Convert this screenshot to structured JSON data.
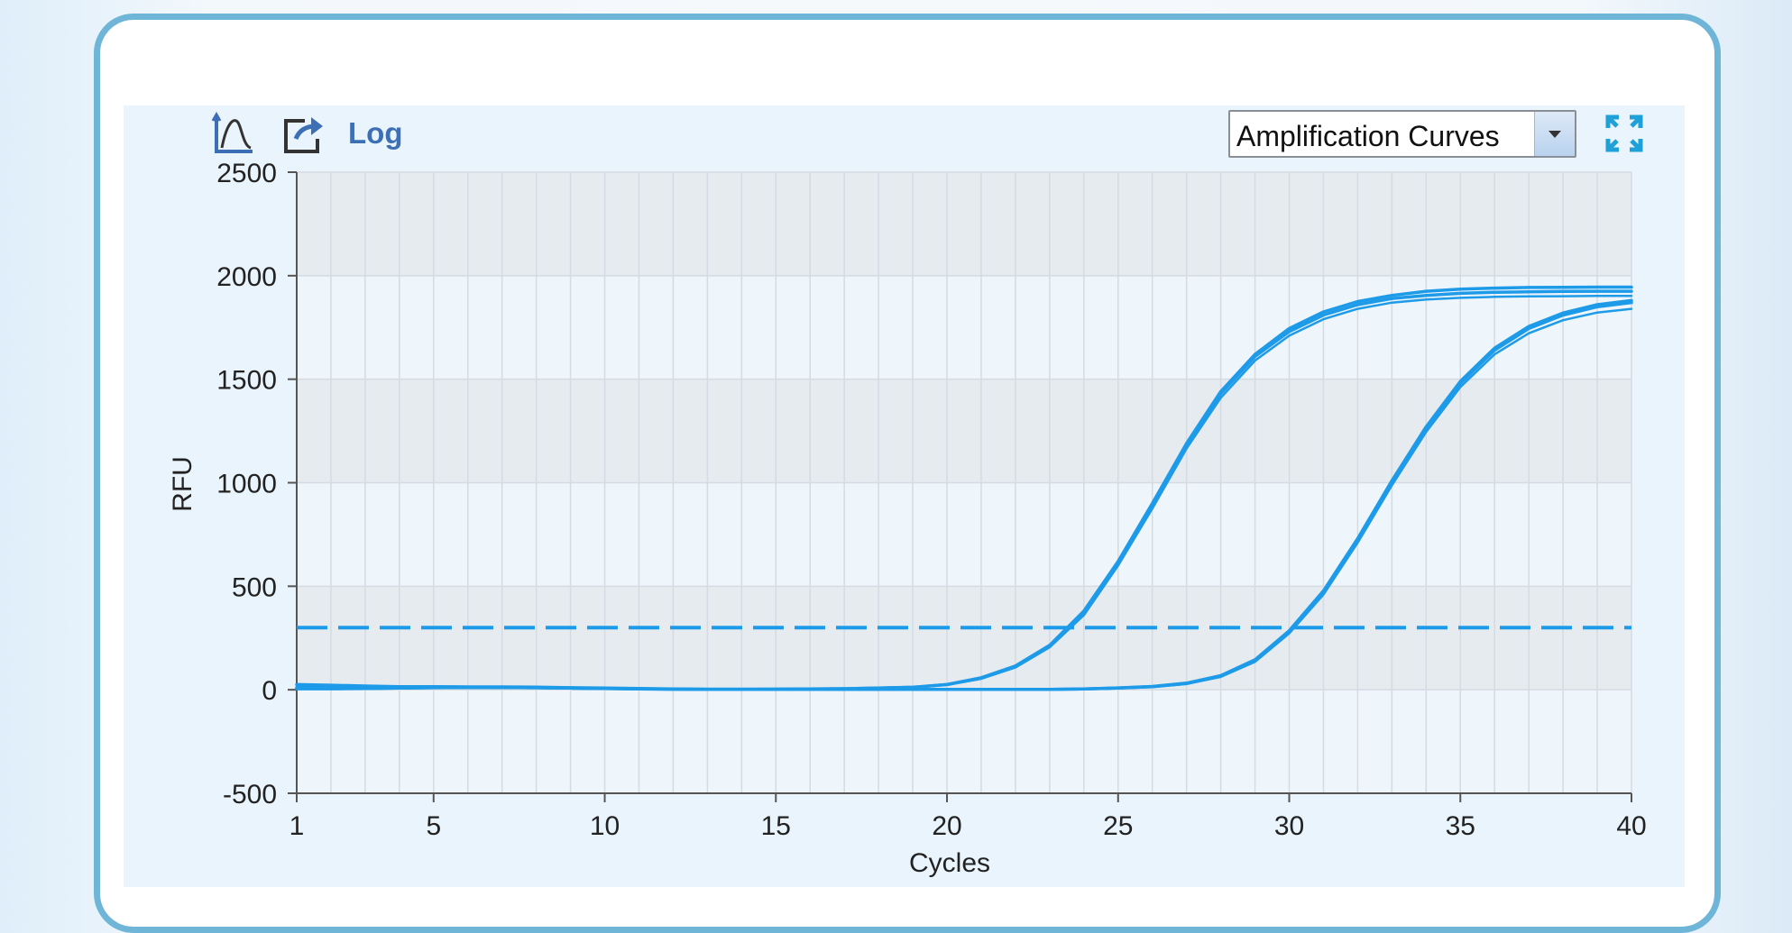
{
  "toolbar": {
    "log_label": "Log",
    "chart_select": {
      "selected": "Amplification Curves"
    }
  },
  "colors": {
    "curve": "#1e9be8",
    "threshold": "#1e9be8",
    "frame": "#6fb5d8",
    "plot_bg": "#eaf4fc"
  },
  "chart_data": {
    "type": "line",
    "title": "",
    "xlabel": "Cycles",
    "ylabel": "RFU",
    "xlim": [
      1,
      40
    ],
    "ylim": [
      -500,
      2500
    ],
    "x_ticks": [
      1,
      5,
      10,
      15,
      20,
      25,
      30,
      35,
      40
    ],
    "y_ticks": [
      -500,
      0,
      500,
      1000,
      1500,
      2000,
      2500
    ],
    "grid": true,
    "threshold": 300,
    "x": [
      1,
      2,
      3,
      4,
      5,
      6,
      7,
      8,
      9,
      10,
      11,
      12,
      13,
      14,
      15,
      16,
      17,
      18,
      19,
      20,
      21,
      22,
      23,
      24,
      25,
      26,
      27,
      28,
      29,
      30,
      31,
      32,
      33,
      34,
      35,
      36,
      37,
      38,
      39,
      40
    ],
    "series": [
      {
        "values": [
          25,
          22,
          18,
          15,
          15,
          14,
          14,
          13,
          10,
          8,
          6,
          4,
          3,
          3,
          3,
          4,
          5,
          8,
          12,
          25,
          55,
          110,
          210,
          370,
          610,
          890,
          1180,
          1430,
          1610,
          1730,
          1810,
          1860,
          1890,
          1905,
          1915,
          1920,
          1922,
          1924,
          1925,
          1925
        ]
      },
      {
        "values": [
          10,
          10,
          10,
          12,
          12,
          12,
          11,
          10,
          8,
          6,
          4,
          3,
          2,
          2,
          3,
          4,
          5,
          8,
          12,
          25,
          58,
          115,
          215,
          380,
          620,
          900,
          1190,
          1440,
          1620,
          1745,
          1825,
          1875,
          1905,
          1925,
          1935,
          1940,
          1943,
          1944,
          1945,
          1945
        ]
      },
      {
        "values": [
          20,
          18,
          16,
          15,
          14,
          13,
          12,
          11,
          9,
          7,
          5,
          4,
          3,
          3,
          3,
          4,
          5,
          8,
          12,
          24,
          54,
          108,
          205,
          360,
          600,
          875,
          1165,
          1410,
          1590,
          1710,
          1790,
          1840,
          1870,
          1885,
          1893,
          1898,
          1900,
          1901,
          1902,
          1902
        ]
      },
      {
        "values": [
          5,
          5,
          6,
          8,
          10,
          11,
          11,
          10,
          8,
          6,
          4,
          3,
          2,
          2,
          2,
          2,
          2,
          2,
          2,
          2,
          2,
          2,
          2,
          4,
          8,
          15,
          30,
          65,
          140,
          280,
          470,
          720,
          1000,
          1260,
          1480,
          1640,
          1745,
          1810,
          1850,
          1870
        ]
      },
      {
        "values": [
          8,
          7,
          7,
          9,
          11,
          12,
          12,
          11,
          9,
          7,
          5,
          3,
          2,
          2,
          2,
          2,
          2,
          2,
          2,
          2,
          2,
          2,
          2,
          4,
          9,
          16,
          32,
          68,
          145,
          285,
          478,
          730,
          1010,
          1270,
          1490,
          1650,
          1755,
          1820,
          1860,
          1880
        ]
      },
      {
        "values": [
          3,
          3,
          4,
          6,
          8,
          9,
          9,
          8,
          6,
          5,
          3,
          2,
          1,
          1,
          1,
          1,
          1,
          1,
          1,
          1,
          1,
          1,
          1,
          3,
          7,
          13,
          28,
          62,
          135,
          272,
          460,
          710,
          988,
          1245,
          1462,
          1620,
          1722,
          1785,
          1822,
          1840
        ]
      }
    ]
  }
}
